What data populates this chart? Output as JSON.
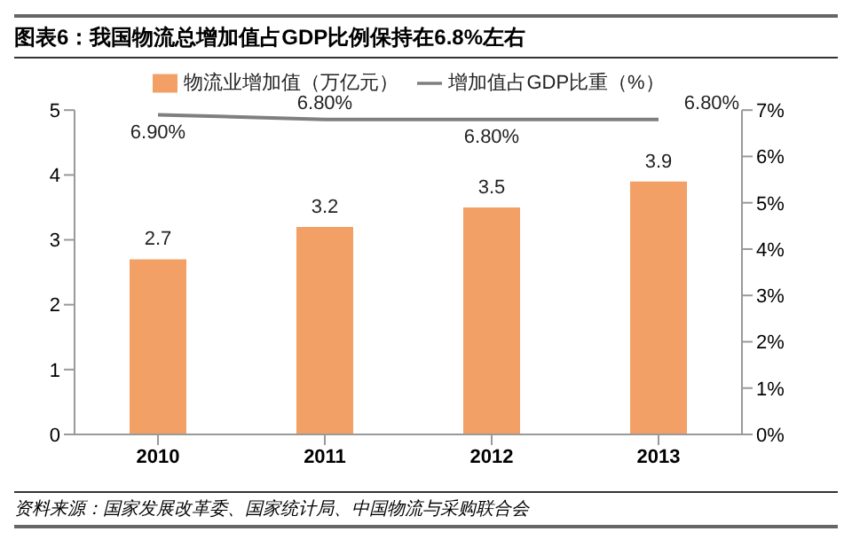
{
  "chart_data": {
    "type": "bar",
    "title": "图表6：我国物流总增加值占GDP比例保持在6.8%左右",
    "annotations": [
      "资料来源：国家发展改革委、国家统计局、中国物流与采购联合会"
    ],
    "categories": [
      "2010",
      "2011",
      "2012",
      "2013"
    ],
    "series": [
      {
        "name": "物流业增加值（万亿元）",
        "color": "#f2a066",
        "values": [
          2.7,
          3.2,
          3.5,
          3.9
        ],
        "value_labels": [
          "2.7",
          "3.2",
          "3.5",
          "3.9"
        ]
      },
      {
        "name": "增加值占GDP比重（%）",
        "type": "line",
        "axis": "y2",
        "color": "#7f7f7f",
        "values": [
          6.9,
          6.8,
          6.8,
          6.8
        ],
        "value_labels": [
          "6.90%",
          "6.80%",
          "6.80%",
          "6.80%"
        ]
      }
    ],
    "ylim": [
      0,
      5
    ],
    "yticks": [
      0,
      1,
      2,
      3,
      4,
      5
    ],
    "y2lim": [
      0,
      7
    ],
    "y2ticks": [
      {
        "value": 0,
        "label": "0%"
      },
      {
        "value": 1,
        "label": "1%"
      },
      {
        "value": 2,
        "label": "2%"
      },
      {
        "value": 3,
        "label": "3%"
      },
      {
        "value": 4,
        "label": "4%"
      },
      {
        "value": 5,
        "label": "5%"
      },
      {
        "value": 6,
        "label": "6%"
      },
      {
        "value": 7,
        "label": "7%"
      }
    ],
    "legend": "top",
    "marker": "none",
    "line_style": "solid"
  }
}
